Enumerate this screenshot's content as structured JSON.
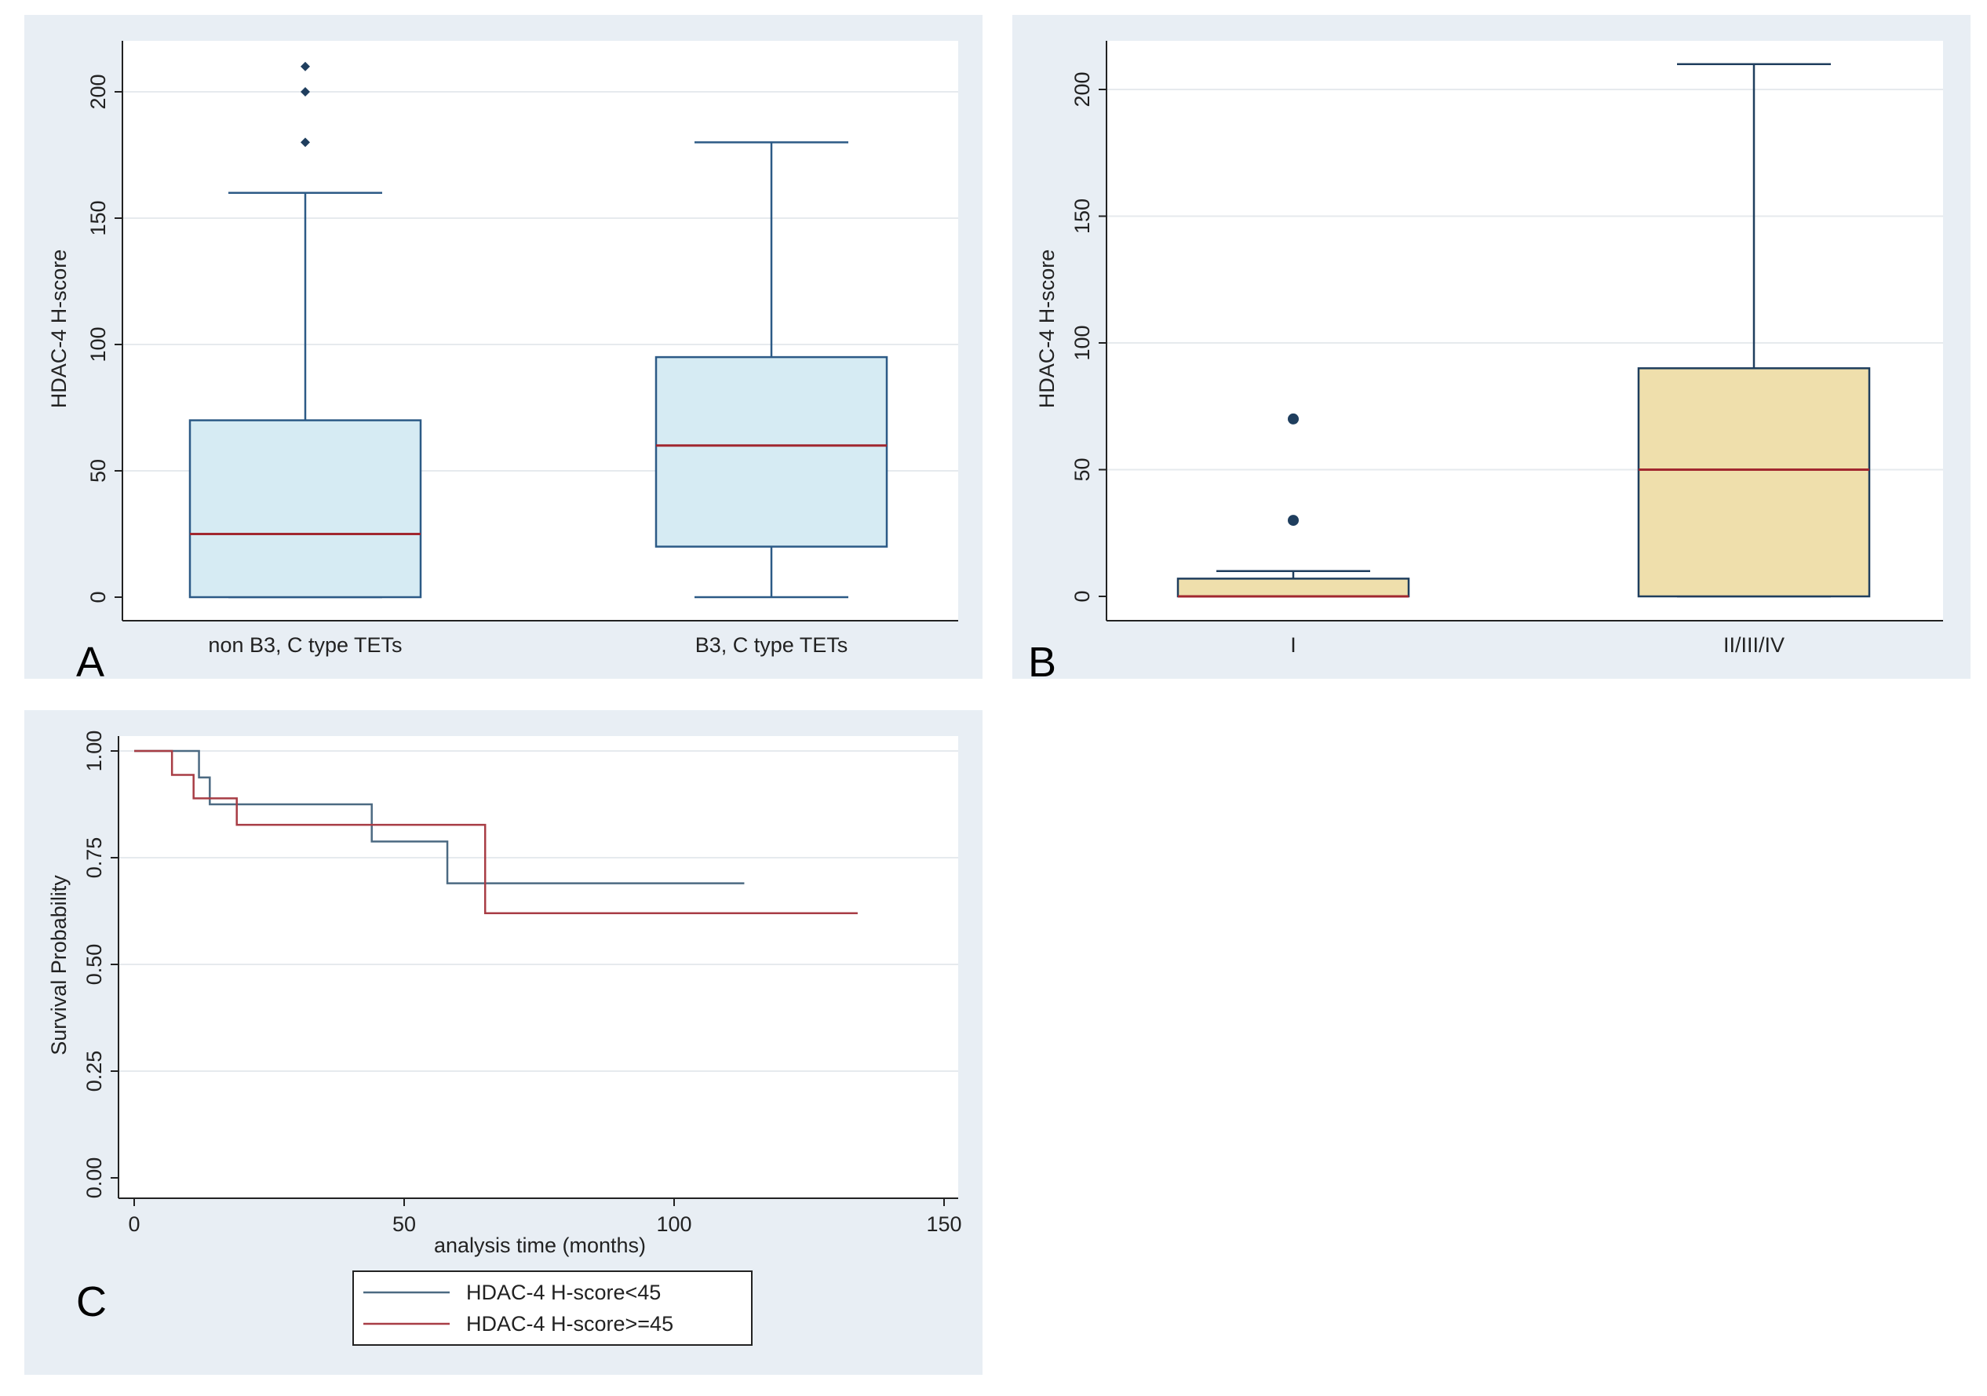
{
  "colors": {
    "panel_bg": "#e8eef4",
    "plot_bg": "#ffffff",
    "grid": "#e6eaee",
    "axis": "#222222",
    "box_a_fill": "#d6ebf3",
    "box_a_stroke": "#2c5a86",
    "box_b_fill": "#efdfac",
    "box_b_stroke": "#1f3e5e",
    "median": "#a1272f",
    "outlier": "#1f3e5e",
    "km_low": "#4c6a82",
    "km_high": "#a83d45"
  },
  "chart_data": [
    {
      "id": "A",
      "type": "box",
      "panel_label": "A",
      "ylabel": "HDAC-4 H-score",
      "xlabel": "",
      "ylim": [
        0,
        210
      ],
      "yticks": [
        0,
        50,
        100,
        150,
        200
      ],
      "grid": true,
      "categories": [
        "non B3, C type TETs",
        "B3, C type TETs"
      ],
      "boxes": [
        {
          "category": "non B3, C type TETs",
          "min": 0,
          "q1": 0,
          "median": 25,
          "q3": 70,
          "max": 160,
          "outliers": [
            180,
            200,
            210
          ]
        },
        {
          "category": "B3, C type TETs",
          "min": 0,
          "q1": 20,
          "median": 60,
          "q3": 95,
          "max": 180,
          "outliers": []
        }
      ]
    },
    {
      "id": "B",
      "type": "box",
      "panel_label": "B",
      "ylabel": "HDAC-4 H-score",
      "xlabel": "",
      "ylim": [
        0,
        210
      ],
      "yticks": [
        0,
        50,
        100,
        150,
        200
      ],
      "grid": true,
      "categories": [
        "I",
        "II/III/IV"
      ],
      "boxes": [
        {
          "category": "I",
          "min": 0,
          "q1": 0,
          "median": 0,
          "q3": 7,
          "max": 10,
          "outliers": [
            30,
            70
          ]
        },
        {
          "category": "II/III/IV",
          "min": 0,
          "q1": 0,
          "median": 50,
          "q3": 90,
          "max": 210,
          "outliers": []
        }
      ]
    },
    {
      "id": "C",
      "type": "line",
      "subtype": "kaplan-meier",
      "panel_label": "C",
      "ylabel": "Survival Probability",
      "xlabel": "analysis time (months)",
      "xlim": [
        0,
        150
      ],
      "ylim": [
        0,
        1
      ],
      "xticks": [
        0,
        50,
        100,
        150
      ],
      "yticks": [
        "0.00",
        "0.25",
        "0.50",
        "0.75",
        "1.00"
      ],
      "grid": true,
      "legend_position": "bottom",
      "series": [
        {
          "name": "HDAC-4 H-score<45",
          "color_key": "km_low",
          "points": [
            [
              0,
              1.0
            ],
            [
              12,
              1.0
            ],
            [
              12,
              0.938
            ],
            [
              14,
              0.938
            ],
            [
              14,
              0.875
            ],
            [
              44,
              0.875
            ],
            [
              44,
              0.788
            ],
            [
              58,
              0.788
            ],
            [
              58,
              0.69
            ],
            [
              113,
              0.69
            ]
          ]
        },
        {
          "name": "HDAC-4 H-score>=45",
          "color_key": "km_high",
          "points": [
            [
              0,
              1.0
            ],
            [
              7,
              1.0
            ],
            [
              7,
              0.944
            ],
            [
              11,
              0.944
            ],
            [
              11,
              0.889
            ],
            [
              19,
              0.889
            ],
            [
              19,
              0.827
            ],
            [
              65,
              0.827
            ],
            [
              65,
              0.62
            ],
            [
              134,
              0.62
            ]
          ]
        }
      ]
    }
  ]
}
